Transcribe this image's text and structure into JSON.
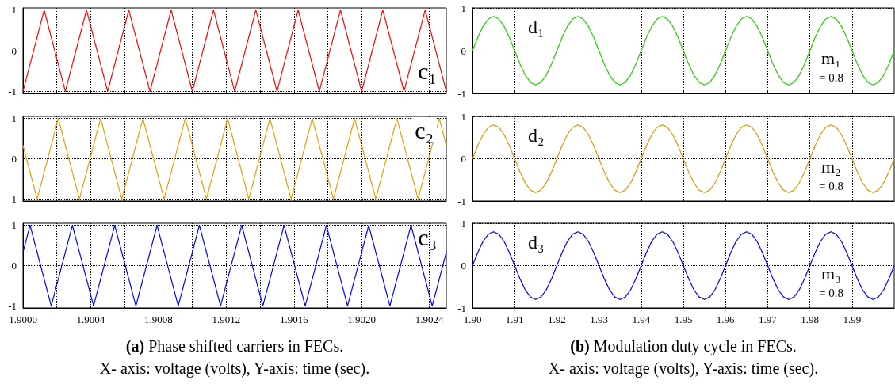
{
  "chart_data": [
    {
      "type": "line",
      "xlim": [
        1.9,
        1.9025
      ],
      "ylim": [
        -1.05,
        1.05
      ],
      "yticks": [
        -1,
        0,
        1
      ],
      "grid": true,
      "marker": "none",
      "line_style": "solid",
      "tick_labels": "y",
      "xticks": [
        1.9,
        1.9002,
        1.9004,
        1.9006,
        1.9008,
        1.901,
        1.9012,
        1.9014,
        1.9016,
        1.9018,
        1.902,
        1.9022,
        1.9024
      ],
      "annotations": [
        "c₁"
      ],
      "series": [
        {
          "color": "#ff0000",
          "x": [
            1.9,
            1.900125,
            1.90025,
            1.900375,
            1.9005,
            1.900625,
            1.90075,
            1.900875,
            1.901,
            1.901125,
            1.90125,
            1.901375,
            1.9015,
            1.901625,
            1.90175,
            1.901875,
            1.902,
            1.902125,
            1.90225,
            1.902375,
            1.9025
          ],
          "values": [
            -1,
            1,
            -1,
            1,
            -1,
            1,
            -1,
            1,
            -1,
            1,
            -1,
            1,
            -1,
            1,
            -1,
            1,
            -1,
            1,
            -1,
            1,
            -1
          ]
        }
      ]
    },
    {
      "type": "line",
      "xlim": [
        1.9,
        2.0
      ],
      "ylim": [
        -1,
        1
      ],
      "yticks": [
        -1,
        0,
        1
      ],
      "grid": true,
      "marker": "none",
      "line_style": "solid",
      "tick_labels": "y",
      "xticks": [
        1.9,
        1.91,
        1.92,
        1.93,
        1.94,
        1.95,
        1.96,
        1.97,
        1.98,
        1.99
      ],
      "annotations": [
        "d₁",
        "m₁",
        "= 0.8"
      ],
      "x": [
        1.9,
        1.90125,
        1.9025,
        1.90375,
        1.905,
        1.90625,
        1.9075,
        1.90875,
        1.91,
        1.91125,
        1.9125,
        1.91375,
        1.915,
        1.91625,
        1.9175,
        1.91875,
        1.92,
        1.92125,
        1.9225,
        1.92375,
        1.925,
        1.92625,
        1.9275,
        1.92875,
        1.93,
        1.93125,
        1.9325,
        1.93375,
        1.935,
        1.93625,
        1.9375,
        1.93875,
        1.94,
        1.94125,
        1.9425,
        1.94375,
        1.945,
        1.94625,
        1.9475,
        1.94875,
        1.95,
        1.95125,
        1.9525,
        1.95375,
        1.955,
        1.95625,
        1.9575,
        1.95875,
        1.96,
        1.96125,
        1.9625,
        1.96375,
        1.965,
        1.96625,
        1.9675,
        1.96875,
        1.97,
        1.97125,
        1.9725,
        1.97375,
        1.975,
        1.97625,
        1.9775,
        1.97875,
        1.98,
        1.98125,
        1.9825,
        1.98375,
        1.985,
        1.98625,
        1.9875,
        1.98875,
        1.99,
        1.99125,
        1.9925,
        1.99375,
        1.995,
        1.99625,
        1.9975,
        1.99875,
        2.0
      ],
      "series": [
        {
          "color": "#22cc00",
          "values": [
            0,
            0.31,
            0.57,
            0.74,
            0.8,
            0.74,
            0.57,
            0.31,
            0,
            -0.31,
            -0.57,
            -0.74,
            -0.8,
            -0.74,
            -0.57,
            -0.31,
            0,
            0.31,
            0.57,
            0.74,
            0.8,
            0.74,
            0.57,
            0.31,
            0,
            -0.31,
            -0.57,
            -0.74,
            -0.8,
            -0.74,
            -0.57,
            -0.31,
            0,
            0.31,
            0.57,
            0.74,
            0.8,
            0.74,
            0.57,
            0.31,
            0,
            -0.31,
            -0.57,
            -0.74,
            -0.8,
            -0.74,
            -0.57,
            -0.31,
            0,
            0.31,
            0.57,
            0.74,
            0.8,
            0.74,
            0.57,
            0.31,
            0,
            -0.31,
            -0.57,
            -0.74,
            -0.8,
            -0.74,
            -0.57,
            -0.31,
            0,
            0.31,
            0.57,
            0.74,
            0.8,
            0.74,
            0.57,
            0.31,
            0,
            -0.31,
            -0.57,
            -0.74,
            -0.8,
            -0.74,
            -0.57,
            -0.31,
            0
          ]
        }
      ]
    },
    {
      "type": "line",
      "xlim": [
        1.9,
        1.9025
      ],
      "ylim": [
        -1.05,
        1.05
      ],
      "yticks": [
        -1,
        0,
        1
      ],
      "grid": true,
      "marker": "none",
      "line_style": "solid",
      "tick_labels": "y",
      "xticks": [
        1.9,
        1.9002,
        1.9004,
        1.9006,
        1.9008,
        1.901,
        1.9012,
        1.9014,
        1.9016,
        1.9018,
        1.902,
        1.9022,
        1.9024
      ],
      "annotations": [
        "c₂"
      ],
      "series": [
        {
          "color": "#e69f00",
          "x": [
            1.9,
            1.9000833,
            1.9002083,
            1.9003333,
            1.9004583,
            1.9005833,
            1.9007083,
            1.9008333,
            1.9009583,
            1.9010833,
            1.9012083,
            1.9013333,
            1.9014583,
            1.9015833,
            1.9017083,
            1.9018333,
            1.9019583,
            1.9020833,
            1.9022083,
            1.9023333,
            1.9024583,
            1.9025
          ],
          "values": [
            0.33,
            -1,
            1,
            -1,
            1,
            -1,
            1,
            -1,
            1,
            -1,
            1,
            -1,
            1,
            -1,
            1,
            -1,
            1,
            -1,
            1,
            -1,
            1,
            0.33
          ]
        }
      ]
    },
    {
      "type": "line",
      "xlim": [
        1.9,
        2.0
      ],
      "ylim": [
        -1,
        1
      ],
      "yticks": [
        -1,
        0,
        1
      ],
      "grid": true,
      "marker": "none",
      "line_style": "solid",
      "tick_labels": "y",
      "xticks": [
        1.9,
        1.91,
        1.92,
        1.93,
        1.94,
        1.95,
        1.96,
        1.97,
        1.98,
        1.99
      ],
      "annotations": [
        "d₂",
        "m₂",
        "= 0.8"
      ],
      "x": [
        1.9,
        1.90125,
        1.9025,
        1.90375,
        1.905,
        1.90625,
        1.9075,
        1.90875,
        1.91,
        1.91125,
        1.9125,
        1.91375,
        1.915,
        1.91625,
        1.9175,
        1.91875,
        1.92,
        1.92125,
        1.9225,
        1.92375,
        1.925,
        1.92625,
        1.9275,
        1.92875,
        1.93,
        1.93125,
        1.9325,
        1.93375,
        1.935,
        1.93625,
        1.9375,
        1.93875,
        1.94,
        1.94125,
        1.9425,
        1.94375,
        1.945,
        1.94625,
        1.9475,
        1.94875,
        1.95,
        1.95125,
        1.9525,
        1.95375,
        1.955,
        1.95625,
        1.9575,
        1.95875,
        1.96,
        1.96125,
        1.9625,
        1.96375,
        1.965,
        1.96625,
        1.9675,
        1.96875,
        1.97,
        1.97125,
        1.9725,
        1.97375,
        1.975,
        1.97625,
        1.9775,
        1.97875,
        1.98,
        1.98125,
        1.9825,
        1.98375,
        1.985,
        1.98625,
        1.9875,
        1.98875,
        1.99,
        1.99125,
        1.9925,
        1.99375,
        1.995,
        1.99625,
        1.9975,
        1.99875,
        2.0
      ],
      "series": [
        {
          "color": "#d9960a",
          "values": [
            0,
            0.31,
            0.57,
            0.74,
            0.8,
            0.74,
            0.57,
            0.31,
            0,
            -0.31,
            -0.57,
            -0.74,
            -0.8,
            -0.74,
            -0.57,
            -0.31,
            0,
            0.31,
            0.57,
            0.74,
            0.8,
            0.74,
            0.57,
            0.31,
            0,
            -0.31,
            -0.57,
            -0.74,
            -0.8,
            -0.74,
            -0.57,
            -0.31,
            0,
            0.31,
            0.57,
            0.74,
            0.8,
            0.74,
            0.57,
            0.31,
            0,
            -0.31,
            -0.57,
            -0.74,
            -0.8,
            -0.74,
            -0.57,
            -0.31,
            0,
            0.31,
            0.57,
            0.74,
            0.8,
            0.74,
            0.57,
            0.31,
            0,
            -0.31,
            -0.57,
            -0.74,
            -0.8,
            -0.74,
            -0.57,
            -0.31,
            0,
            0.31,
            0.57,
            0.74,
            0.8,
            0.74,
            0.57,
            0.31,
            0,
            -0.31,
            -0.57,
            -0.74,
            -0.8,
            -0.74,
            -0.57,
            -0.31,
            0
          ]
        }
      ]
    },
    {
      "type": "line",
      "xlim": [
        1.9,
        1.9025
      ],
      "ylim": [
        -1.05,
        1.05
      ],
      "yticks": [
        -1,
        0,
        1
      ],
      "grid": true,
      "marker": "none",
      "line_style": "solid",
      "xticks": [
        {
          "value": 1.9,
          "label": "1.9000"
        },
        {
          "value": 1.9002,
          "label": null
        },
        1.9004,
        {
          "value": 1.9006,
          "label": null
        },
        1.9008,
        {
          "value": 1.901,
          "label": null
        },
        1.9012,
        {
          "value": 1.9014,
          "label": null
        },
        1.9016,
        {
          "value": 1.9018,
          "label": null
        },
        {
          "value": 1.902,
          "label": "1.9020"
        },
        {
          "value": 1.9022,
          "label": null
        },
        1.9024
      ],
      "annotations": [
        "c₃",
        "(a)",
        "Phase shifted carriers in FECs.",
        "X- axis: voltage (volts), Y-axis: time (sec)."
      ],
      "series": [
        {
          "color": "#0000ff",
          "x": [
            1.9,
            1.9000417,
            1.9001667,
            1.9002917,
            1.9004167,
            1.9005417,
            1.9006667,
            1.9007917,
            1.9009167,
            1.9010417,
            1.9011667,
            1.9012917,
            1.9014167,
            1.9015417,
            1.9016667,
            1.9017917,
            1.9019167,
            1.9020417,
            1.9021667,
            1.9022917,
            1.9024167,
            1.9025
          ],
          "values": [
            0.33,
            1,
            -1,
            1,
            -1,
            1,
            -1,
            1,
            -1,
            1,
            -1,
            1,
            -1,
            1,
            -1,
            1,
            -1,
            1,
            -1,
            1,
            -1,
            0.33
          ]
        }
      ]
    },
    {
      "type": "line",
      "xlim": [
        1.9,
        2.0
      ],
      "ylim": [
        -1,
        1
      ],
      "yticks": [
        -1,
        0,
        1
      ],
      "grid": true,
      "marker": "none",
      "line_style": "solid",
      "xticks": [
        {
          "value": 1.9,
          "label": "1.90"
        },
        1.91,
        1.92,
        1.93,
        1.94,
        1.95,
        1.96,
        1.97,
        1.98,
        1.99
      ],
      "annotations": [
        "d₃",
        "m₃",
        "= 0.8",
        "(b)",
        "Modulation duty cycle in FECs.",
        "X- axis: voltage (volts), Y-axis: time (sec)."
      ],
      "x": [
        1.9,
        1.90125,
        1.9025,
        1.90375,
        1.905,
        1.90625,
        1.9075,
        1.90875,
        1.91,
        1.91125,
        1.9125,
        1.91375,
        1.915,
        1.91625,
        1.9175,
        1.91875,
        1.92,
        1.92125,
        1.9225,
        1.92375,
        1.925,
        1.92625,
        1.9275,
        1.92875,
        1.93,
        1.93125,
        1.9325,
        1.93375,
        1.935,
        1.93625,
        1.9375,
        1.93875,
        1.94,
        1.94125,
        1.9425,
        1.94375,
        1.945,
        1.94625,
        1.9475,
        1.94875,
        1.95,
        1.95125,
        1.9525,
        1.95375,
        1.955,
        1.95625,
        1.9575,
        1.95875,
        1.96,
        1.96125,
        1.9625,
        1.96375,
        1.965,
        1.96625,
        1.9675,
        1.96875,
        1.97,
        1.97125,
        1.9725,
        1.97375,
        1.975,
        1.97625,
        1.9775,
        1.97875,
        1.98,
        1.98125,
        1.9825,
        1.98375,
        1.985,
        1.98625,
        1.9875,
        1.98875,
        1.99,
        1.99125,
        1.9925,
        1.99375,
        1.995,
        1.99625,
        1.9975,
        1.99875,
        2.0
      ],
      "series": [
        {
          "color": "#0000ff",
          "values": [
            0,
            0.31,
            0.57,
            0.74,
            0.8,
            0.74,
            0.57,
            0.31,
            0,
            -0.31,
            -0.57,
            -0.74,
            -0.8,
            -0.74,
            -0.57,
            -0.31,
            0,
            0.31,
            0.57,
            0.74,
            0.8,
            0.74,
            0.57,
            0.31,
            0,
            -0.31,
            -0.57,
            -0.74,
            -0.8,
            -0.74,
            -0.57,
            -0.31,
            0,
            0.31,
            0.57,
            0.74,
            0.8,
            0.74,
            0.57,
            0.31,
            0,
            -0.31,
            -0.57,
            -0.74,
            -0.8,
            -0.74,
            -0.57,
            -0.31,
            0,
            0.31,
            0.57,
            0.74,
            0.8,
            0.74,
            0.57,
            0.31,
            0,
            -0.31,
            -0.57,
            -0.74,
            -0.8,
            -0.74,
            -0.57,
            -0.31,
            0,
            0.31,
            0.57,
            0.74,
            0.8,
            0.74,
            0.57,
            0.31,
            0,
            -0.31,
            -0.57,
            -0.74,
            -0.8,
            -0.74,
            -0.57,
            -0.31,
            0
          ]
        }
      ]
    }
  ]
}
